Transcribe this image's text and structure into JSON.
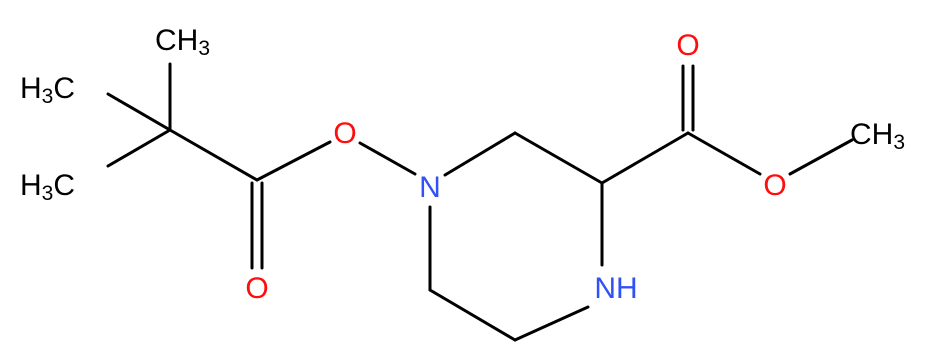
{
  "nodes": [
    {
      "main": "CH",
      "sub": "3"
    },
    {
      "pre": "H",
      "sub": "3",
      "main": "C"
    },
    {
      "pre": "H",
      "sub": "3",
      "main": "C"
    },
    {
      "main": "O"
    },
    {
      "main": "O"
    },
    {
      "main": "N"
    },
    {
      "main": "NH"
    },
    {
      "main": "O"
    },
    {
      "main": "O"
    },
    {
      "main": "CH",
      "sub": "3"
    }
  ]
}
